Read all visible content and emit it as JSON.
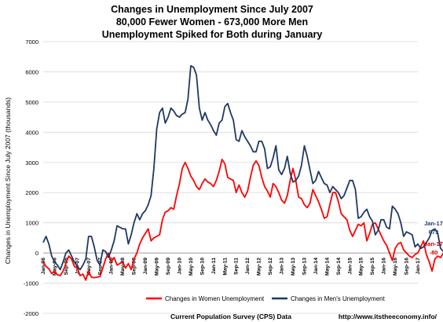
{
  "chart_data": {
    "type": "line",
    "title": [
      "Changes in Unemployment Since July 2007",
      "80,000 Fewer Women - 673,000 More Men",
      "Unemployment Spiked for Both during January"
    ],
    "ylabel": "Changes in Unemployment Since July 2007 (thousands)",
    "xlabel": "",
    "ylim": [
      -2000,
      7000
    ],
    "yticks": [
      -2000,
      -1000,
      0,
      1000,
      2000,
      3000,
      4000,
      5000,
      6000,
      7000
    ],
    "x_start": "2006-01",
    "x_end": "2017-01",
    "xtick_labels": [
      "Jan-06",
      "May-06",
      "Sep-06",
      "Jan-07",
      "May-07",
      "Sep-07",
      "Jan-08",
      "May-08",
      "Sep-08",
      "Jan-09",
      "May-09",
      "Sep-09",
      "Jan-10",
      "May-10",
      "Sep-10",
      "Jan-11",
      "May-11",
      "Sep-11",
      "Jan-12",
      "May-12",
      "Sep-12",
      "Jan-13",
      "May-13",
      "Sep-13",
      "Jan-14",
      "May-14",
      "Sep-14",
      "Jan-15",
      "May-15",
      "Sep-15",
      "Jan-16",
      "May-16",
      "Sep-16",
      "Jan-17"
    ],
    "grid": true,
    "legend_position": "bottom",
    "series": [
      {
        "name": "Changes in Women Unemployment",
        "color": "#ff0000",
        "values": [
          -280,
          -450,
          -520,
          -680,
          -600,
          -720,
          -750,
          -600,
          -350,
          -100,
          -200,
          -450,
          -500,
          -750,
          -700,
          -900,
          -600,
          -800,
          -820,
          -800,
          -780,
          -500,
          -200,
          0,
          -300,
          -150,
          -400,
          -350,
          -300,
          -500,
          -350,
          -550,
          -200,
          0,
          300,
          500,
          650,
          800,
          400,
          500,
          550,
          600,
          1100,
          1350,
          1400,
          1500,
          1450,
          1900,
          2300,
          2800,
          3000,
          2800,
          2550,
          2400,
          2200,
          2100,
          2300,
          2450,
          2350,
          2300,
          2200,
          2400,
          2700,
          3100,
          2950,
          2500,
          2450,
          2400,
          2000,
          2250,
          2000,
          1850,
          2050,
          2500,
          2900,
          3050,
          2900,
          2500,
          2200,
          2050,
          1850,
          2300,
          2200,
          2000,
          1750,
          1650,
          1900,
          2400,
          2800,
          2400,
          1850,
          1800,
          1600,
          1500,
          1650,
          2100,
          1900,
          1700,
          1450,
          1150,
          1200,
          1600,
          2000,
          2000,
          1700,
          1300,
          1200,
          1100,
          750,
          550,
          750,
          950,
          900,
          1000,
          400,
          650,
          950,
          1000,
          800,
          600,
          400,
          250,
          0,
          -250,
          150,
          300,
          350,
          100,
          0,
          -100,
          -150,
          -50,
          0,
          200,
          400,
          -50,
          -300,
          -600,
          -200,
          -100,
          -150,
          0,
          -50,
          -250,
          -350,
          -150,
          0,
          150,
          -250,
          100,
          300,
          200,
          -50,
          -200,
          -350,
          -500,
          -600,
          -400,
          -80
        ]
      },
      {
        "name": "Changes in Men's Unemployment",
        "color": "#1f3864",
        "values": [
          350,
          550,
          300,
          -100,
          -300,
          -400,
          -550,
          -300,
          0,
          100,
          -100,
          -300,
          -450,
          -550,
          -400,
          -200,
          550,
          550,
          200,
          -250,
          -400,
          100,
          50,
          -150,
          100,
          400,
          900,
          850,
          800,
          800,
          300,
          600,
          1000,
          1300,
          1100,
          1300,
          1400,
          1600,
          1900,
          2800,
          4100,
          4650,
          4800,
          4300,
          4500,
          4800,
          4700,
          4550,
          4500,
          4600,
          4650,
          5100,
          6200,
          6150,
          5900,
          4800,
          4400,
          4650,
          4400,
          4250,
          4050,
          3900,
          4300,
          4400,
          4850,
          4950,
          4650,
          4400,
          3750,
          3700,
          4050,
          3850,
          3700,
          3550,
          3350,
          3350,
          3700,
          3700,
          3450,
          2800,
          2850,
          3150,
          3550,
          2750,
          2600,
          2800,
          3200,
          2650,
          2350,
          2400,
          2550,
          2900,
          3550,
          3200,
          2750,
          2300,
          2400,
          2700,
          2500,
          2300,
          2250,
          2000,
          2200,
          2100,
          2000,
          1800,
          1900,
          2150,
          2400,
          2400,
          2100,
          1150,
          1200,
          1350,
          1450,
          1200,
          1050,
          600,
          750,
          1100,
          1100,
          850,
          800,
          1550,
          1450,
          1300,
          1000,
          550,
          700,
          650,
          600,
          200,
          300,
          150,
          200,
          350,
          500,
          750,
          800,
          650,
          150,
          50,
          0,
          400,
          500,
          150,
          200,
          400,
          500,
          100,
          150,
          300,
          350,
          100,
          0,
          200,
          400,
          650,
          673
        ]
      }
    ],
    "annotations": {
      "women_label": "Jan-17",
      "women_value": "-80",
      "men_label": "Jan-17",
      "men_value": "673"
    }
  },
  "footer": {
    "source": "Current Population Survey (CPS) Data",
    "url": "http://www.itstheeconomy.info/"
  }
}
